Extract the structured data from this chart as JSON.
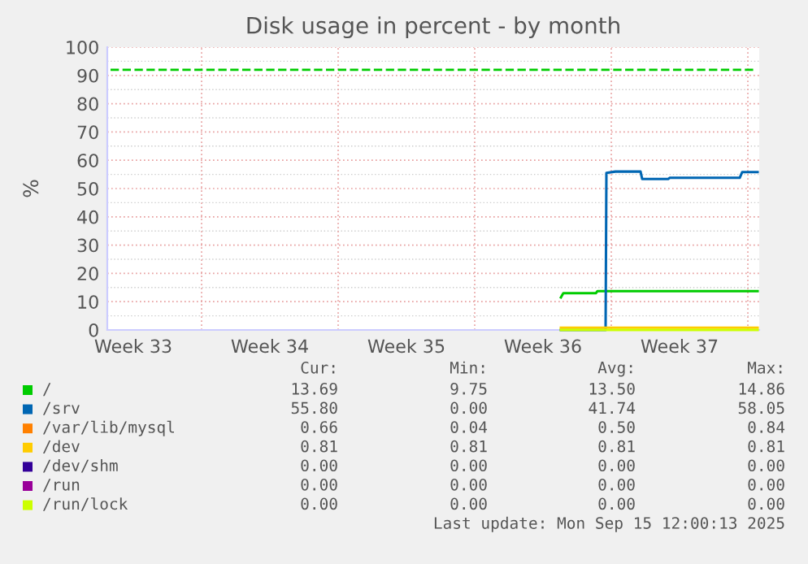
{
  "chart_data": {
    "type": "line",
    "title": "Disk usage in percent - by month",
    "ylabel": "%",
    "xlim": [
      "2025-08-13T04:00",
      "2025-09-15T14:00"
    ],
    "ylim": [
      0,
      100
    ],
    "xticks": [
      {
        "value": "2025-08-14T12:00",
        "label": "Week 33"
      },
      {
        "value": "2025-08-18T00:00",
        "label": null
      },
      {
        "value": "2025-08-21T12:00",
        "label": "Week 34"
      },
      {
        "value": "2025-08-25T00:00",
        "label": null
      },
      {
        "value": "2025-08-28T12:00",
        "label": "Week 35"
      },
      {
        "value": "2025-09-01T00:00",
        "label": null
      },
      {
        "value": "2025-09-04T12:00",
        "label": "Week 36"
      },
      {
        "value": "2025-09-08T00:00",
        "label": null
      },
      {
        "value": "2025-09-11T12:00",
        "label": "Week 37"
      },
      {
        "value": "2025-09-15T00:00",
        "label": null
      }
    ],
    "yticks": [
      0,
      10,
      20,
      30,
      40,
      50,
      60,
      70,
      80,
      90,
      100
    ],
    "grid": true,
    "legend": "bottom",
    "line_style": "solid",
    "marker": "none",
    "ref_lines": [
      {
        "axis": "y",
        "value": 92,
        "color": "#00cc00",
        "line_style": "dashed"
      }
    ],
    "series": [
      {
        "name": "/",
        "color": "#00cc00",
        "x": [
          "2025-09-05T10:00",
          "2025-09-05T13:00",
          "2025-09-07T05:00",
          "2025-09-07T07:00",
          "2025-09-15T12:00"
        ],
        "values": [
          11.5,
          13,
          13,
          13.7,
          13.7
        ]
      },
      {
        "name": "/srv",
        "color": "#0066b3",
        "x": [
          "2025-09-05T10:00",
          "2025-09-07T17:00",
          "2025-09-07T18:00",
          "2025-09-08T05:00",
          "2025-09-09T12:00",
          "2025-09-09T14:00",
          "2025-09-10T22:00",
          "2025-09-11T00:00",
          "2025-09-14T14:00",
          "2025-09-14T17:00",
          "2025-09-15T12:00"
        ],
        "values": [
          0,
          0,
          55.5,
          56,
          56,
          53.4,
          53.4,
          53.8,
          53.8,
          55.8,
          55.8
        ]
      },
      {
        "name": "/var/lib/mysql",
        "color": "#ff8000"
      },
      {
        "name": "/dev",
        "color": "#ffcc00",
        "x": [
          "2025-09-05T10:00",
          "2025-09-15T12:00"
        ],
        "values": [
          0.8,
          0.8
        ]
      },
      {
        "name": "/dev/shm",
        "color": "#330099"
      },
      {
        "name": "/run",
        "color": "#990099"
      },
      {
        "name": "/run/lock",
        "color": "#ccff00",
        "x": [
          "2025-09-05T10:00",
          "2025-09-15T12:00"
        ],
        "values": [
          0,
          0
        ]
      }
    ],
    "annotations": [
      "Cur:",
      "Min:",
      "Avg:",
      "Max:",
      "13.69",
      "9.75",
      "13.50",
      "14.86",
      "55.80",
      "0.00",
      "41.74",
      "58.05",
      "0.66",
      "0.04",
      "0.50",
      "0.84",
      "0.81",
      "0.81",
      "0.81",
      "0.81",
      "0.00",
      "0.00",
      "0.00",
      "0.00",
      "0.00",
      "0.00",
      "0.00",
      "0.00",
      "0.00",
      "0.00",
      "0.00",
      "0.00",
      "Last update: Mon Sep 15 12:00:13 2025"
    ]
  }
}
